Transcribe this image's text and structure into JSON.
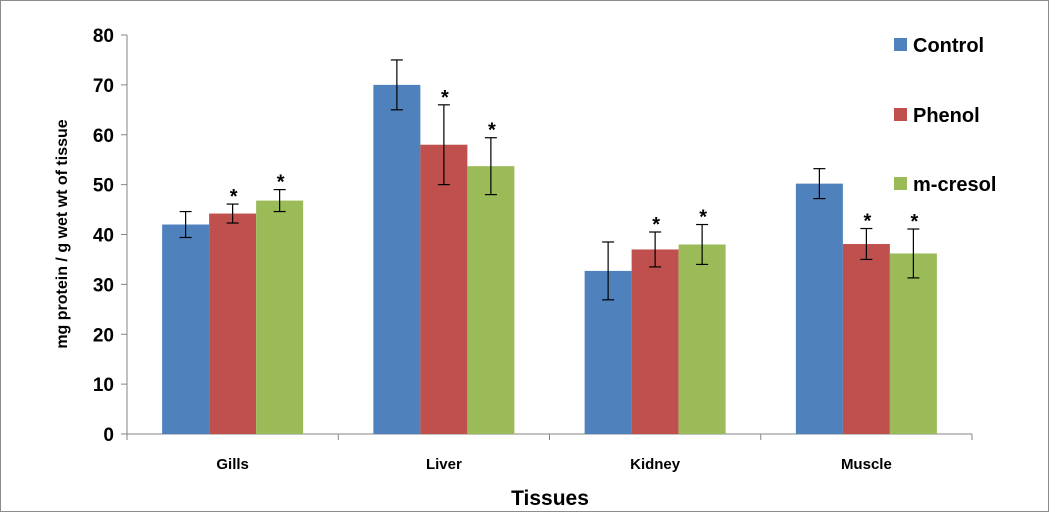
{
  "chart_data": {
    "type": "bar",
    "xlabel": "Tissues",
    "ylabel": "mg protein / g  wet wt of tissue",
    "ylim": [
      0,
      80
    ],
    "yticks": [
      0,
      10,
      20,
      30,
      40,
      50,
      60,
      70,
      80
    ],
    "categories": [
      "Gills",
      "Liver",
      "Kidney",
      "Muscle"
    ],
    "legend_position": "top-right",
    "significance_marker": "*",
    "series": [
      {
        "name": "Control",
        "color": "#4f81bd",
        "values": [
          42.0,
          70.0,
          32.7,
          50.2
        ],
        "error": [
          2.6,
          5.0,
          5.8,
          3.0
        ],
        "significant": [
          false,
          false,
          false,
          false
        ]
      },
      {
        "name": "Phenol",
        "color": "#c0504d",
        "values": [
          44.2,
          58.0,
          37.0,
          38.1
        ],
        "error": [
          1.9,
          8.0,
          3.5,
          3.1
        ],
        "significant": [
          true,
          true,
          true,
          true
        ]
      },
      {
        "name": "m-cresol",
        "color": "#9bbb59",
        "values": [
          46.8,
          53.7,
          38.0,
          36.2
        ],
        "error": [
          2.2,
          5.7,
          4.0,
          4.9
        ],
        "significant": [
          true,
          true,
          true,
          true
        ]
      }
    ]
  }
}
